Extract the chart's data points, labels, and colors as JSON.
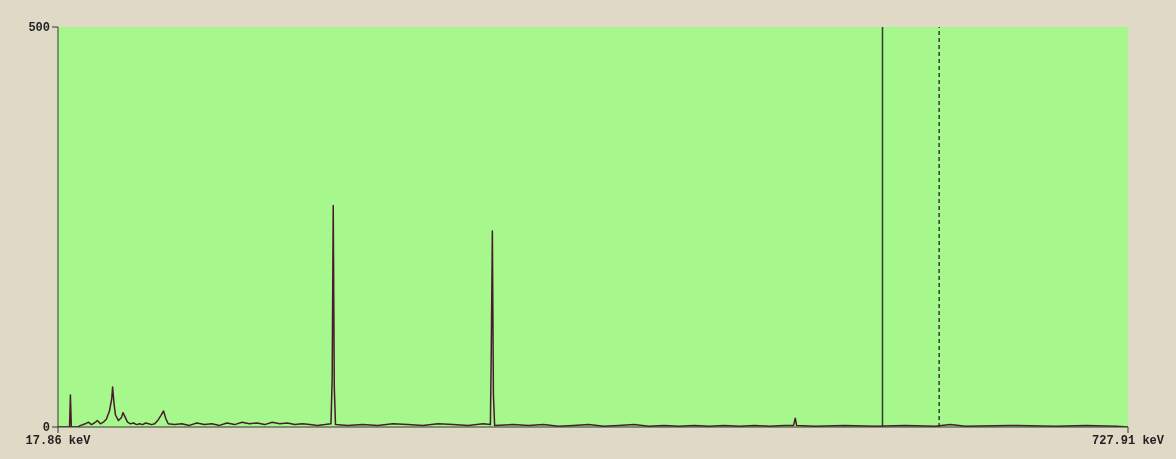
{
  "chart_data": {
    "type": "line",
    "x": [
      17.86,
      25.5,
      26.1,
      26.7,
      31,
      33,
      36,
      38,
      40,
      42,
      44,
      46,
      48,
      50,
      52,
      53.5,
      54.1,
      55,
      56,
      58,
      60,
      61,
      62.5,
      64,
      66,
      68,
      70,
      72,
      74,
      76,
      78,
      80,
      82,
      84,
      86,
      87.9,
      89.5,
      91,
      95,
      100,
      105,
      110,
      115,
      120,
      125,
      130,
      135,
      140,
      145,
      150,
      155,
      160,
      165,
      170,
      175,
      180,
      185,
      190,
      195,
      199,
      199.8,
      200.5,
      201.2,
      202,
      210,
      220,
      230,
      240,
      250,
      260,
      270,
      280,
      290,
      300,
      304.8,
      305.4,
      306.1,
      306.8,
      307.6,
      320,
      330,
      340,
      350,
      360,
      370,
      380,
      390,
      400,
      410,
      420,
      430,
      440,
      450,
      460,
      470,
      480,
      490,
      500,
      506,
      507.1,
      508,
      520,
      540,
      560,
      580,
      600,
      610,
      620,
      650,
      680,
      700,
      720,
      727.91
    ],
    "series": [
      {
        "color": "#4a1a30",
        "values": [
          0,
          0,
          40,
          0,
          0,
          2,
          4,
          6,
          3,
          5,
          8,
          4,
          6,
          10,
          20,
          35,
          50,
          30,
          15,
          8,
          12,
          18,
          12,
          6,
          4,
          5,
          3,
          4,
          3,
          5,
          4,
          3,
          4,
          8,
          14,
          20,
          10,
          4,
          3,
          4,
          2,
          5,
          3,
          4,
          2,
          5,
          3,
          6,
          4,
          5,
          3,
          6,
          4,
          5,
          3,
          4,
          3,
          2,
          3,
          4,
          60,
          277,
          50,
          3,
          2,
          3,
          2,
          4,
          3,
          2,
          4,
          3,
          2,
          4,
          3,
          100,
          245,
          40,
          2,
          3,
          2,
          3,
          1,
          2,
          3,
          1,
          2,
          3,
          1,
          2,
          1,
          2,
          1,
          2,
          1,
          2,
          1,
          2,
          2,
          11,
          2,
          1,
          2,
          1,
          2,
          1,
          3,
          1,
          2,
          1,
          2,
          1,
          0
        ]
      }
    ],
    "xlim": [
      17.86,
      727.91
    ],
    "xticks": [
      {
        "value": 17.86,
        "label": "17.86 keV"
      },
      {
        "value": 727.91,
        "label": "727.91 keV"
      }
    ],
    "ylim": [
      0,
      500
    ],
    "yticks": [
      0,
      500
    ],
    "marker": "none",
    "line_style": "solid",
    "ref_lines": [
      {
        "axis": "x",
        "value": 565,
        "color": "#2f3f2f",
        "line_style": "solid"
      },
      {
        "axis": "x",
        "value": 602.6,
        "color": "#2f3f2f",
        "line_style": "dashed"
      }
    ]
  }
}
